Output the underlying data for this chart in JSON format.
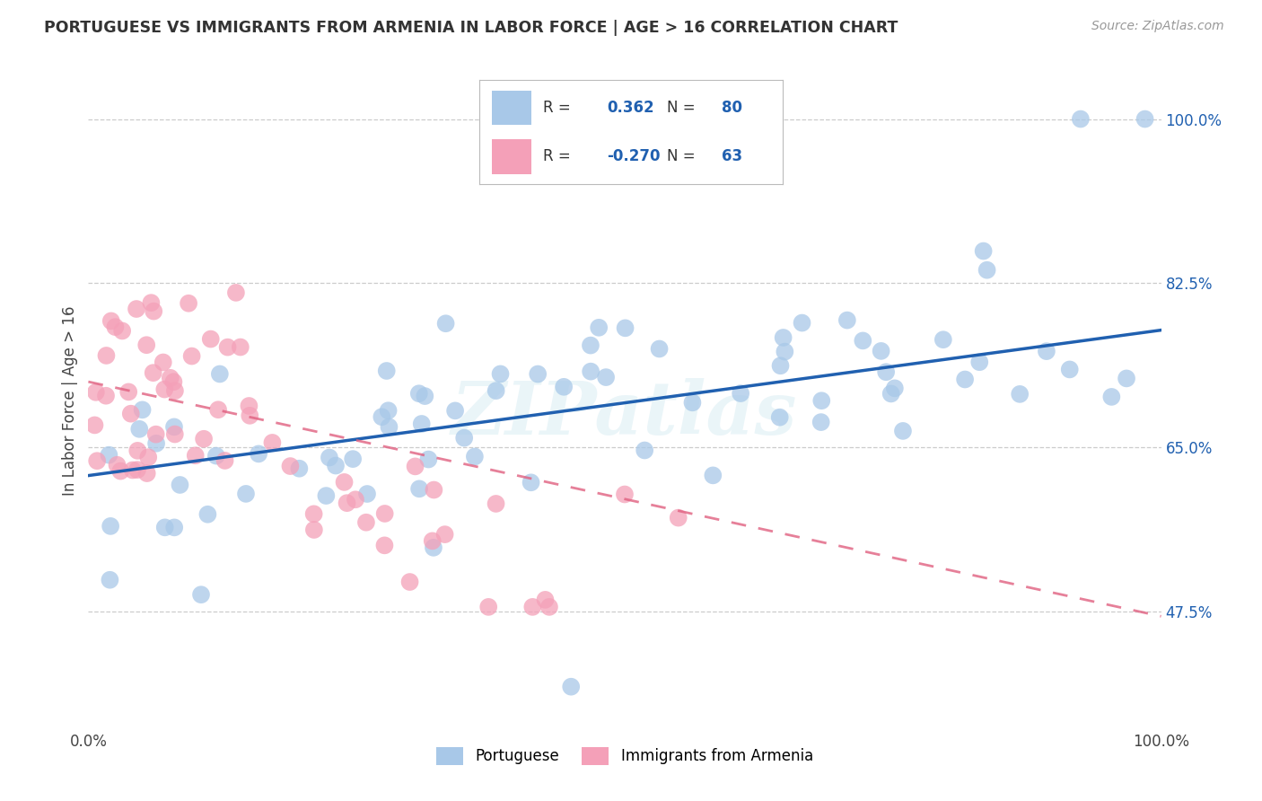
{
  "title": "PORTUGUESE VS IMMIGRANTS FROM ARMENIA IN LABOR FORCE | AGE > 16 CORRELATION CHART",
  "source": "Source: ZipAtlas.com",
  "ylabel": "In Labor Force | Age > 16",
  "ytick_labels": [
    "100.0%",
    "82.5%",
    "65.0%",
    "47.5%"
  ],
  "ytick_values": [
    1.0,
    0.825,
    0.65,
    0.475
  ],
  "xlim": [
    0.0,
    1.0
  ],
  "ylim": [
    0.35,
    1.05
  ],
  "r_blue": 0.362,
  "n_blue": 80,
  "r_pink": -0.27,
  "n_pink": 63,
  "legend_label_blue": "Portuguese",
  "legend_label_pink": "Immigrants from Armenia",
  "dot_color_blue": "#a8c8e8",
  "dot_color_pink": "#f4a0b8",
  "line_color_blue": "#2060b0",
  "line_color_pink": "#e06080",
  "watermark": "ZIPatlas",
  "blue_line_start_y": 0.62,
  "blue_line_end_y": 0.775,
  "pink_line_start_y": 0.72,
  "pink_line_end_y": 0.47
}
